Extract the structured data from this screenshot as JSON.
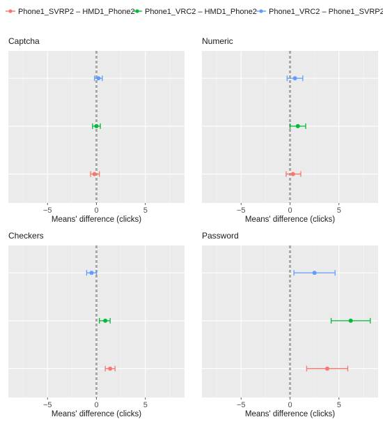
{
  "chart_data": {
    "type": "scatter",
    "subtype": "point-range (mean difference with error bars)",
    "legend": {
      "placement": "top",
      "entries": [
        {
          "name": "Phone1_SVRP2 – HMD1_Phone2",
          "color": "#F8766D"
        },
        {
          "name": "Phone1_VRC2 – HMD1_Phone2",
          "color": "#00BA38"
        },
        {
          "name": "Phone1_VRC2 – Phone1_SVRP2",
          "color": "#619CFF"
        }
      ]
    },
    "xlim": [
      -9,
      9
    ],
    "xticks": [
      -5,
      0,
      5
    ],
    "xlabel": "Means' difference (clicks)",
    "reference_line_x": 0,
    "grid": true,
    "background": "#EBEBEB",
    "panels": [
      {
        "title": "Captcha",
        "points": [
          {
            "series": "Phone1_VRC2 – Phone1_SVRP2",
            "mean": 0.2,
            "low": -0.2,
            "high": 0.6
          },
          {
            "series": "Phone1_VRC2 – HMD1_Phone2",
            "mean": 0.0,
            "low": -0.4,
            "high": 0.4
          },
          {
            "series": "Phone1_SVRP2 – HMD1_Phone2",
            "mean": -0.2,
            "low": -0.6,
            "high": 0.3
          }
        ]
      },
      {
        "title": "Numeric",
        "points": [
          {
            "series": "Phone1_VRC2 – Phone1_SVRP2",
            "mean": 0.5,
            "low": -0.3,
            "high": 1.3
          },
          {
            "series": "Phone1_VRC2 – HMD1_Phone2",
            "mean": 0.8,
            "low": 0.0,
            "high": 1.6
          },
          {
            "series": "Phone1_SVRP2 – HMD1_Phone2",
            "mean": 0.3,
            "low": -0.4,
            "high": 1.1
          }
        ]
      },
      {
        "title": "Checkers",
        "points": [
          {
            "series": "Phone1_VRC2 – Phone1_SVRP2",
            "mean": -0.5,
            "low": -1.0,
            "high": 0.0
          },
          {
            "series": "Phone1_VRC2 – HMD1_Phone2",
            "mean": 0.9,
            "low": 0.3,
            "high": 1.4
          },
          {
            "series": "Phone1_SVRP2 – HMD1_Phone2",
            "mean": 1.4,
            "low": 0.9,
            "high": 1.9
          }
        ]
      },
      {
        "title": "Password",
        "points": [
          {
            "series": "Phone1_VRC2 – Phone1_SVRP2",
            "mean": 2.5,
            "low": 0.4,
            "high": 4.6
          },
          {
            "series": "Phone1_VRC2 – HMD1_Phone2",
            "mean": 6.2,
            "low": 4.2,
            "high": 8.2
          },
          {
            "series": "Phone1_SVRP2 – HMD1_Phone2",
            "mean": 3.8,
            "low": 1.7,
            "high": 5.9
          }
        ]
      }
    ]
  }
}
